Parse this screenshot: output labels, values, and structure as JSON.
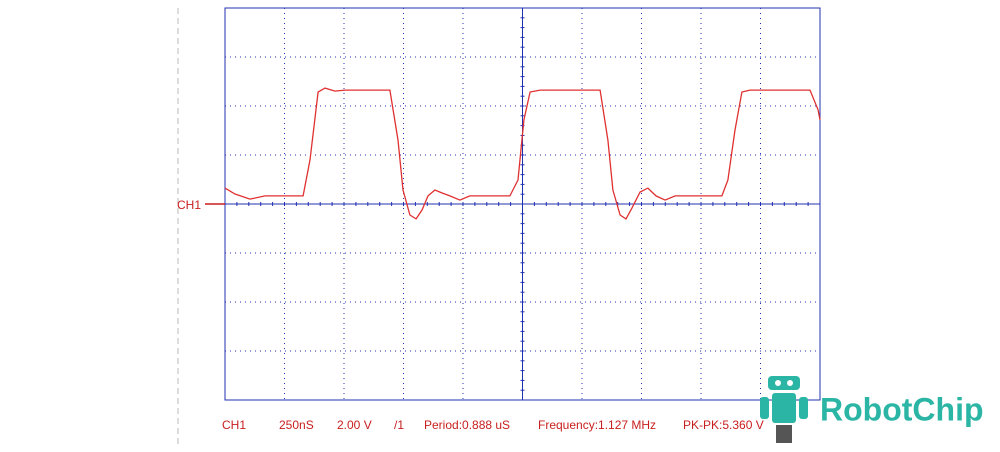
{
  "screen": {
    "channel_marker": "CH1",
    "status": {
      "channel": "CH1",
      "timebase": "250nS",
      "volts_per_div": "2.00 V",
      "probe": "/1",
      "period": "Period:0.888 uS",
      "frequency": "Frequency:1.127 MHz",
      "pk_pk": "PK-PK:5.360 V"
    },
    "logo": "RobotChip",
    "trace": {
      "color": "#e03030",
      "xlim": [
        0,
        2500
      ],
      "ylim": [
        -8,
        8
      ],
      "x": [
        0,
        42,
        105,
        168,
        252,
        328,
        357,
        391,
        420,
        462,
        504,
        693,
        727,
        748,
        777,
        803,
        828,
        853,
        882,
        912,
        945,
        987,
        1029,
        1113,
        1197,
        1231,
        1256,
        1282,
        1324,
        1576,
        1609,
        1630,
        1660,
        1685,
        1710,
        1744,
        1777,
        1811,
        1849,
        1891,
        1996,
        2088,
        2113,
        2143,
        2172,
        2206,
        2458,
        2492,
        2500
      ],
      "values": [
        0.65,
        0.41,
        0.2,
        0.33,
        0.33,
        0.33,
        1.8,
        4.57,
        4.73,
        4.61,
        4.65,
        4.65,
        2.61,
        0.57,
        -0.45,
        -0.61,
        -0.24,
        0.33,
        0.57,
        0.45,
        0.33,
        0.16,
        0.33,
        0.33,
        0.33,
        0.98,
        3.43,
        4.57,
        4.65,
        4.65,
        2.61,
        0.57,
        -0.45,
        -0.61,
        -0.16,
        0.49,
        0.65,
        0.33,
        0.16,
        0.33,
        0.33,
        0.33,
        0.98,
        3.02,
        4.57,
        4.65,
        4.65,
        3.84,
        3.43
      ]
    }
  }
}
